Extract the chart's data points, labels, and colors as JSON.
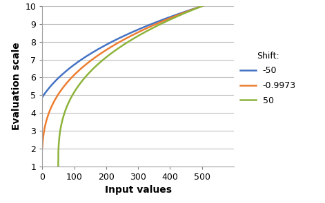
{
  "title": "",
  "xlabel": "Input values",
  "ylabel": "Evaluation scale",
  "xlim": [
    0,
    600
  ],
  "ylim": [
    1,
    10
  ],
  "xticks": [
    0,
    100,
    200,
    300,
    400,
    500
  ],
  "yticks": [
    1,
    2,
    3,
    4,
    5,
    6,
    7,
    8,
    9,
    10
  ],
  "legend_title": "Shift:",
  "series": [
    {
      "shift": -50,
      "color": "#4472C4",
      "label": "-50"
    },
    {
      "shift": -0.9973,
      "color": "#ED7D31",
      "label": "-0.9973"
    },
    {
      "shift": 50,
      "color": "#8CB33A",
      "label": "50"
    }
  ],
  "x_input_max": 500,
  "y_min": 1,
  "y_max": 10,
  "exponent": 0.35,
  "background_color": "#FFFFFF",
  "grid_color": "#BFBFBF",
  "xlabel_fontsize": 10,
  "ylabel_fontsize": 10,
  "tick_fontsize": 9,
  "legend_fontsize": 9,
  "figsize": [
    4.71,
    2.95
  ],
  "dpi": 100
}
